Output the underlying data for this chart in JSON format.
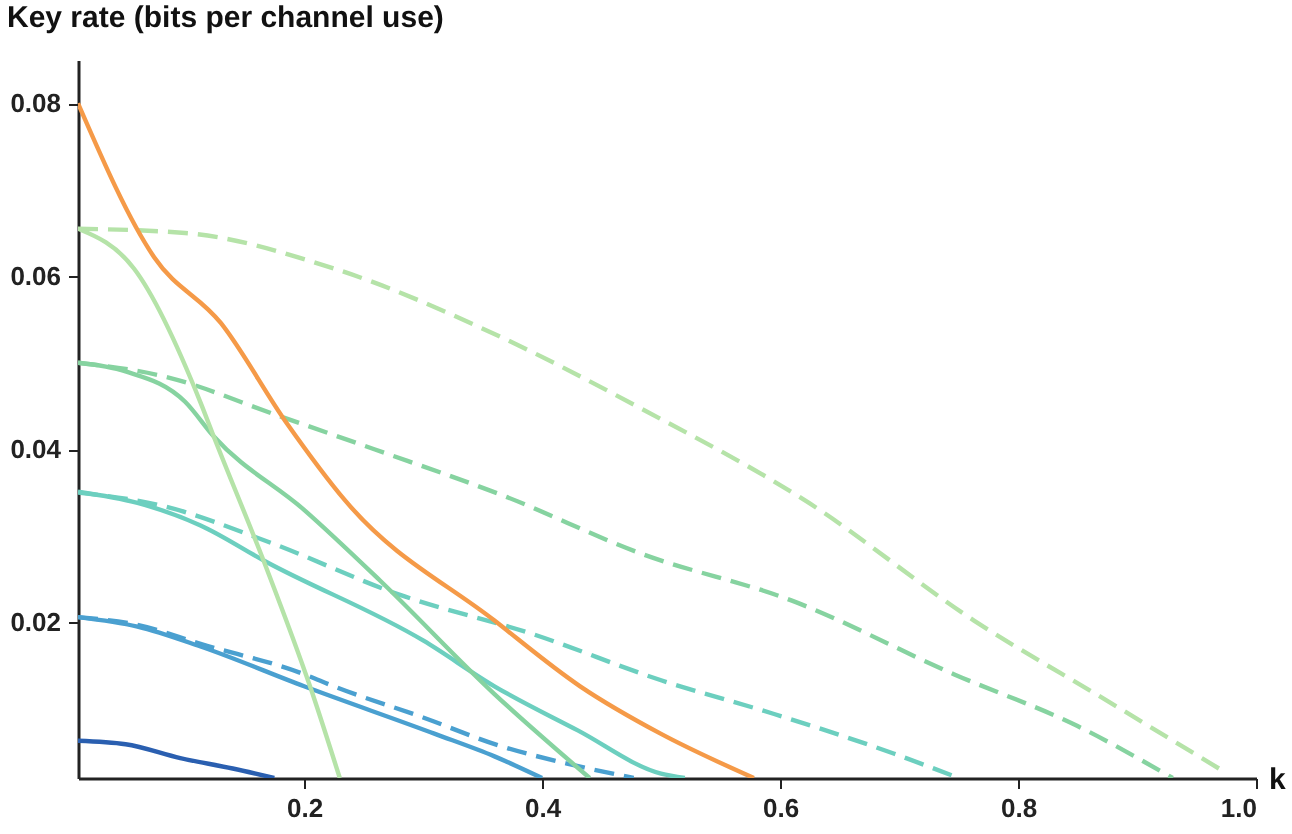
{
  "chart_data": {
    "type": "line",
    "xlabel": "k",
    "ylabel": "Key rate (bits per channel use)",
    "xlim": [
      0.01,
      1.0
    ],
    "ylim": [
      0.002,
      0.085
    ],
    "xticks": [
      0.2,
      0.4,
      0.6,
      0.8,
      {
        "value": 1.0,
        "label": "1.0"
      }
    ],
    "yticks": [
      0.02,
      0.04,
      0.06,
      0.08
    ],
    "grid": false,
    "marker": "none",
    "series": [
      {
        "color": "#2a5fb0",
        "line_style": "solid",
        "x": [
          0.01,
          0.05,
          0.096,
          0.14,
          0.175
        ],
        "values": [
          0.0063,
          0.0059,
          0.0043,
          0.0031,
          0.002
        ]
      },
      {
        "color": "#4aa0d0",
        "line_style": "dashed",
        "x": [
          0.01,
          0.06,
          0.113,
          0.2,
          0.225,
          0.3,
          0.365,
          0.42,
          0.477
        ],
        "values": [
          0.0206,
          0.0197,
          0.0175,
          0.014,
          0.0126,
          0.009,
          0.0057,
          0.0037,
          0.002
        ]
      },
      {
        "color": "#4aa0d0",
        "line_style": "solid",
        "x": [
          0.01,
          0.06,
          0.113,
          0.2,
          0.31,
          0.36,
          0.4
        ],
        "values": [
          0.0206,
          0.0195,
          0.0172,
          0.0126,
          0.0071,
          0.0045,
          0.002
        ]
      },
      {
        "color": "#6ccfbf",
        "line_style": "dashed",
        "x": [
          0.01,
          0.08,
          0.168,
          0.28,
          0.393,
          0.5,
          0.595,
          0.696,
          0.75
        ],
        "values": [
          0.035,
          0.0335,
          0.0294,
          0.0232,
          0.0186,
          0.0133,
          0.0094,
          0.0048,
          0.002
        ]
      },
      {
        "color": "#6ccfbf",
        "line_style": "solid",
        "x": [
          0.01,
          0.06,
          0.113,
          0.168,
          0.3,
          0.36,
          0.43,
          0.5,
          0.52
        ],
        "values": [
          0.0351,
          0.0338,
          0.0312,
          0.027,
          0.0179,
          0.0126,
          0.0075,
          0.0025,
          0.002
        ]
      },
      {
        "color": "#86d3a0",
        "line_style": "dashed",
        "x": [
          0.01,
          0.08,
          0.18,
          0.259,
          0.37,
          0.482,
          0.61,
          0.746,
          0.85,
          0.93
        ],
        "values": [
          0.05,
          0.0485,
          0.0438,
          0.04,
          0.0345,
          0.028,
          0.0225,
          0.014,
          0.008,
          0.002
        ]
      },
      {
        "color": "#86d3a0",
        "line_style": "solid",
        "x": [
          0.01,
          0.05,
          0.1,
          0.124,
          0.2,
          0.264,
          0.36,
          0.44
        ],
        "values": [
          0.05,
          0.049,
          0.0455,
          0.0415,
          0.033,
          0.0248,
          0.0117,
          0.002
        ]
      },
      {
        "color": "#b5e3a8",
        "line_style": "dashed",
        "x": [
          0.01,
          0.1,
          0.225,
          0.365,
          0.482,
          0.622,
          0.763,
          0.874,
          0.97
        ],
        "values": [
          0.0655,
          0.065,
          0.0609,
          0.053,
          0.0448,
          0.034,
          0.0202,
          0.011,
          0.003
        ]
      },
      {
        "color": "#b5e3a8",
        "line_style": "solid",
        "x": [
          0.01,
          0.057,
          0.113,
          0.124,
          0.168,
          0.205,
          0.23
        ],
        "values": [
          0.0655,
          0.0609,
          0.0454,
          0.0415,
          0.0264,
          0.0126,
          0.002
        ]
      },
      {
        "color": "#f59a48",
        "line_style": "solid",
        "x": [
          0.01,
          0.074,
          0.13,
          0.185,
          0.235,
          0.36,
          0.432,
          0.5,
          0.578
        ],
        "values": [
          0.08,
          0.0622,
          0.0546,
          0.0431,
          0.034,
          0.0202,
          0.0126,
          0.0071,
          0.002
        ]
      }
    ]
  }
}
